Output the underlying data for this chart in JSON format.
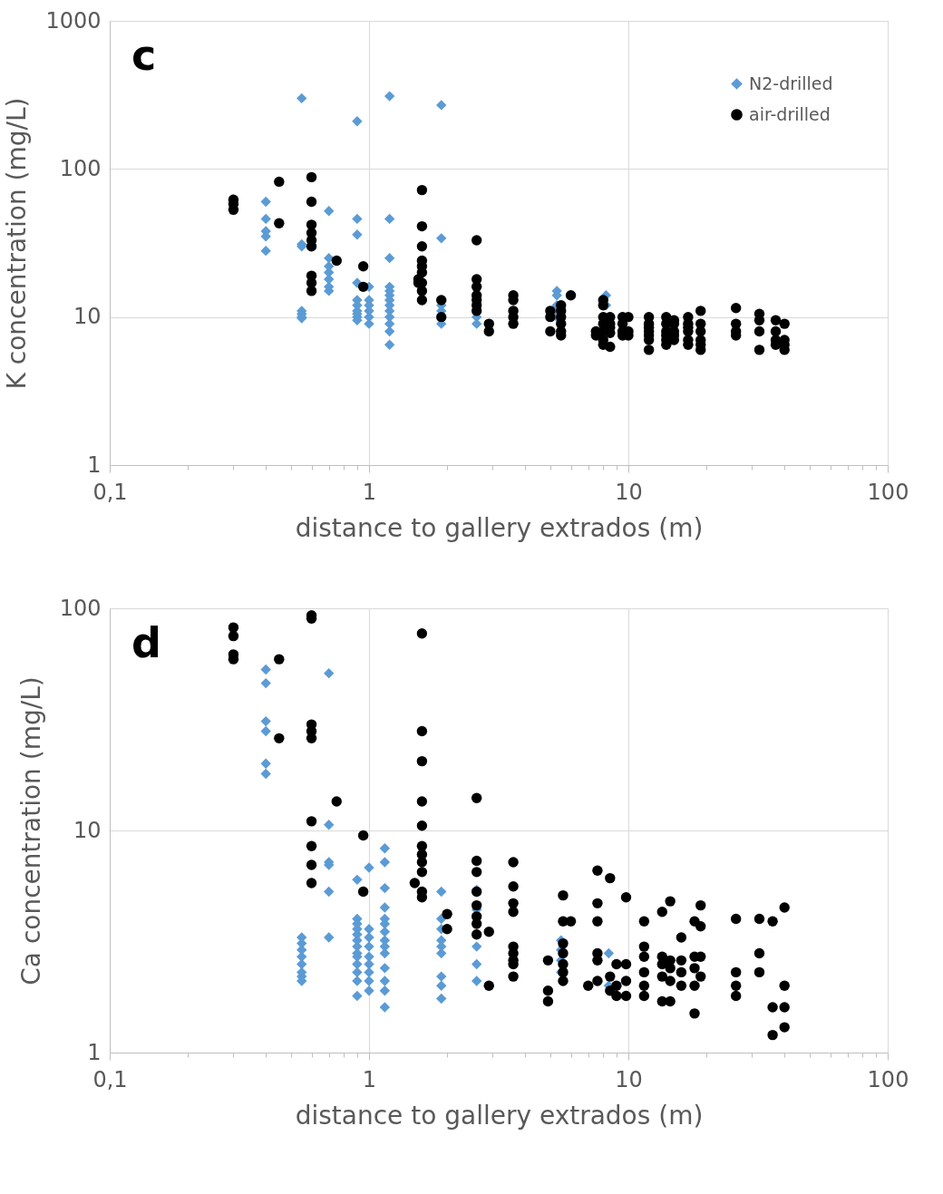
{
  "chart_data": [
    {
      "type": "scatter",
      "annotations": [
        "c"
      ],
      "xlabel": "distance to gallery extrados (m)",
      "ylabel": "K concentration (mg/L)",
      "log": "xy",
      "grid": true,
      "legend": "top right",
      "xlim": [
        0.1,
        100
      ],
      "xticks": [
        {
          "value": 0.1,
          "label": "0,1"
        },
        {
          "value": 0.2,
          "label": null
        },
        {
          "value": 0.3,
          "label": null
        },
        {
          "value": 0.4,
          "label": null
        },
        {
          "value": 0.5,
          "label": null
        },
        {
          "value": 0.6,
          "label": null
        },
        {
          "value": 0.7,
          "label": null
        },
        {
          "value": 0.8,
          "label": null
        },
        {
          "value": 0.9,
          "label": null
        },
        1,
        {
          "value": 2,
          "label": null
        },
        {
          "value": 3,
          "label": null
        },
        {
          "value": 4,
          "label": null
        },
        {
          "value": 5,
          "label": null
        },
        {
          "value": 6,
          "label": null
        },
        {
          "value": 7,
          "label": null
        },
        {
          "value": 8,
          "label": null
        },
        {
          "value": 9,
          "label": null
        },
        10,
        {
          "value": 20,
          "label": null
        },
        {
          "value": 30,
          "label": null
        },
        {
          "value": 40,
          "label": null
        },
        {
          "value": 50,
          "label": null
        },
        {
          "value": 60,
          "label": null
        },
        {
          "value": 70,
          "label": null
        },
        {
          "value": 80,
          "label": null
        },
        {
          "value": 90,
          "label": null
        },
        100
      ],
      "ylim": [
        1,
        1000
      ],
      "yticks": [
        1,
        10,
        100,
        1000
      ],
      "series": [
        {
          "name": "N2-drilled",
          "color": "#5b9bd5",
          "marker": "diamond",
          "x": [
            0.4,
            0.4,
            0.4,
            0.4,
            0.4,
            0.55,
            0.55,
            0.55,
            0.55,
            0.55,
            0.55,
            0.55,
            0.7,
            0.7,
            0.7,
            0.7,
            0.7,
            0.7,
            0.7,
            0.9,
            0.9,
            0.9,
            0.9,
            0.9,
            0.9,
            0.9,
            0.9,
            0.9,
            0.9,
            1.0,
            1.0,
            1.0,
            1.0,
            1.0,
            1.0,
            1.2,
            1.2,
            1.2,
            1.2,
            1.2,
            1.2,
            1.2,
            1.2,
            1.2,
            1.2,
            1.2,
            1.2,
            1.2,
            1.9,
            1.9,
            1.9,
            1.9,
            1.9,
            2.6,
            2.6,
            5.3,
            5.3,
            5.3,
            5.3,
            5.3,
            8.2,
            8.2
          ],
          "values": [
            60,
            46,
            38,
            35,
            28,
            300,
            31,
            30,
            11,
            10.5,
            10,
            9.8,
            52,
            25,
            22,
            20,
            18,
            16,
            15,
            210,
            46,
            36,
            17,
            13,
            12,
            11,
            10.5,
            10,
            9.5,
            16,
            13,
            12,
            11,
            10,
            9,
            310,
            46,
            25,
            16,
            15,
            14,
            13,
            12,
            11,
            10,
            9,
            8,
            6.5,
            270,
            34,
            12,
            11,
            9,
            10,
            9,
            15,
            14,
            12,
            11,
            10,
            14,
            12
          ]
        },
        {
          "name": "air-drilled",
          "color": "#000000",
          "marker": "circle",
          "x": [
            0.3,
            0.3,
            0.3,
            0.45,
            0.45,
            0.6,
            0.6,
            0.6,
            0.6,
            0.6,
            0.6,
            0.6,
            0.6,
            0.6,
            0.75,
            0.95,
            0.95,
            1.55,
            1.55,
            1.6,
            1.6,
            1.6,
            1.6,
            1.6,
            1.6,
            1.6,
            1.6,
            1.6,
            1.9,
            1.9,
            2.6,
            2.6,
            2.6,
            2.6,
            2.6,
            2.6,
            2.6,
            2.9,
            2.9,
            3.6,
            3.6,
            3.6,
            3.6,
            3.6,
            5,
            5,
            5,
            5.5,
            5.5,
            5.5,
            5.5,
            5.5,
            5.5,
            6,
            7.5,
            7.5,
            8,
            8,
            8,
            8,
            8,
            8,
            8,
            8.5,
            8.5,
            8.5,
            8.5,
            8.5,
            9.5,
            9.5,
            9.5,
            9.5,
            10,
            10,
            10,
            12,
            12,
            12,
            12,
            12,
            12,
            12,
            14,
            14,
            14,
            14,
            14,
            14,
            15,
            15,
            15,
            15,
            15,
            17,
            17,
            17,
            17,
            17,
            17,
            19,
            19,
            19,
            19,
            19,
            19,
            26,
            26,
            26,
            26,
            32,
            32,
            32,
            32,
            37,
            37,
            37,
            37,
            40,
            40,
            40,
            40
          ],
          "values": [
            62,
            58,
            53,
            82,
            43,
            88,
            60,
            42,
            37,
            33,
            30,
            19,
            17,
            15,
            24,
            22,
            16,
            18,
            17,
            72,
            41,
            30,
            24,
            22,
            20,
            17,
            15,
            13,
            13,
            10,
            33,
            18,
            16,
            14,
            13,
            12,
            11,
            9,
            8,
            14,
            13,
            11,
            10,
            9,
            11,
            10,
            8,
            12,
            11,
            10,
            9,
            8,
            7.5,
            14,
            8,
            7.5,
            13,
            12,
            10,
            9,
            8,
            7,
            6.5,
            10,
            9,
            8.5,
            7.8,
            6.3,
            10,
            9,
            8,
            7.5,
            10,
            8,
            7.5,
            10,
            9,
            8.5,
            8,
            7.5,
            7,
            6,
            10,
            9,
            8,
            7.5,
            7,
            6.5,
            9.5,
            9,
            8,
            7.5,
            7,
            10,
            9,
            8.5,
            8,
            7,
            6.5,
            11,
            9,
            8,
            7,
            6.5,
            6,
            11.5,
            9,
            8,
            7.5,
            10.5,
            9.5,
            8,
            6,
            9.5,
            8,
            7,
            6.5,
            9,
            7,
            6.5,
            6
          ]
        }
      ]
    },
    {
      "type": "scatter",
      "annotations": [
        "d"
      ],
      "xlabel": "distance to gallery extrados (m)",
      "ylabel": "Ca concentration (mg/L)",
      "log": "xy",
      "grid": true,
      "legend": "top right",
      "xlim": [
        0.1,
        100
      ],
      "xticks": [
        {
          "value": 0.1,
          "label": "0,1"
        },
        {
          "value": 0.2,
          "label": null
        },
        {
          "value": 0.3,
          "label": null
        },
        {
          "value": 0.4,
          "label": null
        },
        {
          "value": 0.5,
          "label": null
        },
        {
          "value": 0.6,
          "label": null
        },
        {
          "value": 0.7,
          "label": null
        },
        {
          "value": 0.8,
          "label": null
        },
        {
          "value": 0.9,
          "label": null
        },
        1,
        {
          "value": 2,
          "label": null
        },
        {
          "value": 3,
          "label": null
        },
        {
          "value": 4,
          "label": null
        },
        {
          "value": 5,
          "label": null
        },
        {
          "value": 6,
          "label": null
        },
        {
          "value": 7,
          "label": null
        },
        {
          "value": 8,
          "label": null
        },
        {
          "value": 9,
          "label": null
        },
        10,
        {
          "value": 20,
          "label": null
        },
        {
          "value": 30,
          "label": null
        },
        {
          "value": 40,
          "label": null
        },
        {
          "value": 50,
          "label": null
        },
        {
          "value": 60,
          "label": null
        },
        {
          "value": 70,
          "label": null
        },
        {
          "value": 80,
          "label": null
        },
        {
          "value": 90,
          "label": null
        },
        100
      ],
      "ylim": [
        1,
        100
      ],
      "yticks": [
        1,
        10,
        100
      ],
      "series": [
        {
          "name": "N2-drilled",
          "color": "#5b9bd5",
          "marker": "diamond",
          "x": [
            0.4,
            0.4,
            0.4,
            0.4,
            0.4,
            0.4,
            0.55,
            0.55,
            0.55,
            0.55,
            0.55,
            0.55,
            0.55,
            0.55,
            0.7,
            0.7,
            0.7,
            0.7,
            0.7,
            0.7,
            0.9,
            0.9,
            0.9,
            0.9,
            0.9,
            0.9,
            0.9,
            0.9,
            0.9,
            0.9,
            0.9,
            0.9,
            0.9,
            1.0,
            1.0,
            1.0,
            1.0,
            1.0,
            1.0,
            1.0,
            1.0,
            1.0,
            1.15,
            1.15,
            1.15,
            1.15,
            1.15,
            1.15,
            1.15,
            1.15,
            1.15,
            1.15,
            1.15,
            1.15,
            1.15,
            1.15,
            1.9,
            1.9,
            1.9,
            1.9,
            1.9,
            1.9,
            1.9,
            1.9,
            1.9,
            2.6,
            2.6,
            2.6,
            2.6,
            2.6,
            5.5,
            5.5,
            5.5,
            5.5,
            8.4,
            8.4
          ],
          "values": [
            53,
            46,
            31,
            28,
            20,
            18,
            3.3,
            3.1,
            2.9,
            2.7,
            2.5,
            2.3,
            2.2,
            2.1,
            51,
            10.6,
            7.2,
            7,
            5.3,
            3.3,
            6,
            4,
            3.8,
            3.6,
            3.4,
            3.2,
            3,
            2.8,
            2.7,
            2.5,
            2.3,
            2.1,
            1.8,
            6.8,
            3.6,
            3.3,
            3.0,
            2.7,
            2.5,
            2.3,
            2.1,
            1.9,
            8.3,
            7.2,
            5.5,
            4.5,
            4,
            3.8,
            3.5,
            3.2,
            3,
            2.8,
            2.4,
            2.1,
            1.9,
            1.6,
            5.3,
            4,
            3.6,
            3.2,
            3,
            2.8,
            2.2,
            2,
            1.75,
            5.4,
            4.4,
            3,
            2.5,
            2.1,
            3.2,
            2.9,
            2.6,
            2.3,
            2.8,
            2
          ]
        },
        {
          "name": "air-drilled",
          "color": "#000000",
          "marker": "circle",
          "x": [
            0.3,
            0.3,
            0.3,
            0.3,
            0.45,
            0.45,
            0.6,
            0.6,
            0.6,
            0.6,
            0.6,
            0.6,
            0.6,
            0.6,
            0.6,
            0.75,
            0.95,
            0.95,
            1.5,
            1.6,
            1.6,
            1.6,
            1.6,
            1.6,
            1.6,
            1.6,
            1.6,
            1.6,
            1.6,
            1.6,
            2.0,
            2.0,
            2.6,
            2.6,
            2.6,
            2.6,
            2.6,
            2.6,
            2.6,
            2.6,
            2.9,
            2.9,
            3.6,
            3.6,
            3.6,
            3.6,
            3.6,
            3.6,
            3.6,
            3.6,
            3.6,
            4.9,
            4.9,
            4.9,
            5.6,
            5.6,
            5.6,
            5.6,
            5.6,
            5.6,
            5.6,
            6,
            7,
            7.6,
            7.6,
            7.6,
            7.6,
            7.6,
            7.6,
            8.5,
            8.5,
            8.5,
            9,
            9,
            9,
            9.8,
            9.8,
            9.8,
            9.8,
            11.5,
            11.5,
            11.5,
            11.5,
            11.5,
            11.5,
            13.5,
            13.5,
            13.5,
            13.5,
            13.5,
            14.5,
            14.5,
            14.5,
            14.5,
            14.5,
            16,
            16,
            16,
            16,
            18,
            18,
            18,
            18,
            18,
            19,
            19,
            19,
            19,
            26,
            26,
            26,
            26,
            32,
            32,
            32,
            36,
            36,
            36,
            40,
            40,
            40,
            40
          ],
          "values": [
            82,
            75,
            62,
            59,
            59,
            26,
            93,
            90,
            30,
            28,
            26,
            11,
            8.5,
            7,
            5.8,
            13.5,
            9.5,
            5.3,
            5.8,
            77,
            28,
            20.5,
            13.5,
            10.5,
            8.5,
            7.8,
            7.2,
            6.5,
            5.3,
            5.0,
            4.2,
            3.6,
            14,
            7.3,
            6.5,
            5.3,
            4.6,
            4.1,
            3.8,
            3.4,
            3.5,
            2.0,
            7.2,
            5.6,
            4.7,
            4.3,
            3,
            2.8,
            2.6,
            2.5,
            2.2,
            1.9,
            1.7,
            2.6,
            5.1,
            3.9,
            3.1,
            2.8,
            2.5,
            2.3,
            2.1,
            3.9,
            2.0,
            6.6,
            4.7,
            3.9,
            2.8,
            2.6,
            2.1,
            6.1,
            2.2,
            1.9,
            2.5,
            2.0,
            1.8,
            5.0,
            2.5,
            2.1,
            1.8,
            3.9,
            3.0,
            2.7,
            2.3,
            2.0,
            1.8,
            4.3,
            2.7,
            2.5,
            2.2,
            1.7,
            4.8,
            2.6,
            2.4,
            2.1,
            1.7,
            3.3,
            2.6,
            2.3,
            2.0,
            3.9,
            2.7,
            2.4,
            2.0,
            1.5,
            4.6,
            3.7,
            2.7,
            2.2,
            4.0,
            2.3,
            2.0,
            1.8,
            4.0,
            2.8,
            2.3,
            3.9,
            1.6,
            1.2,
            4.5,
            2.0,
            1.6,
            1.3
          ]
        }
      ]
    }
  ]
}
